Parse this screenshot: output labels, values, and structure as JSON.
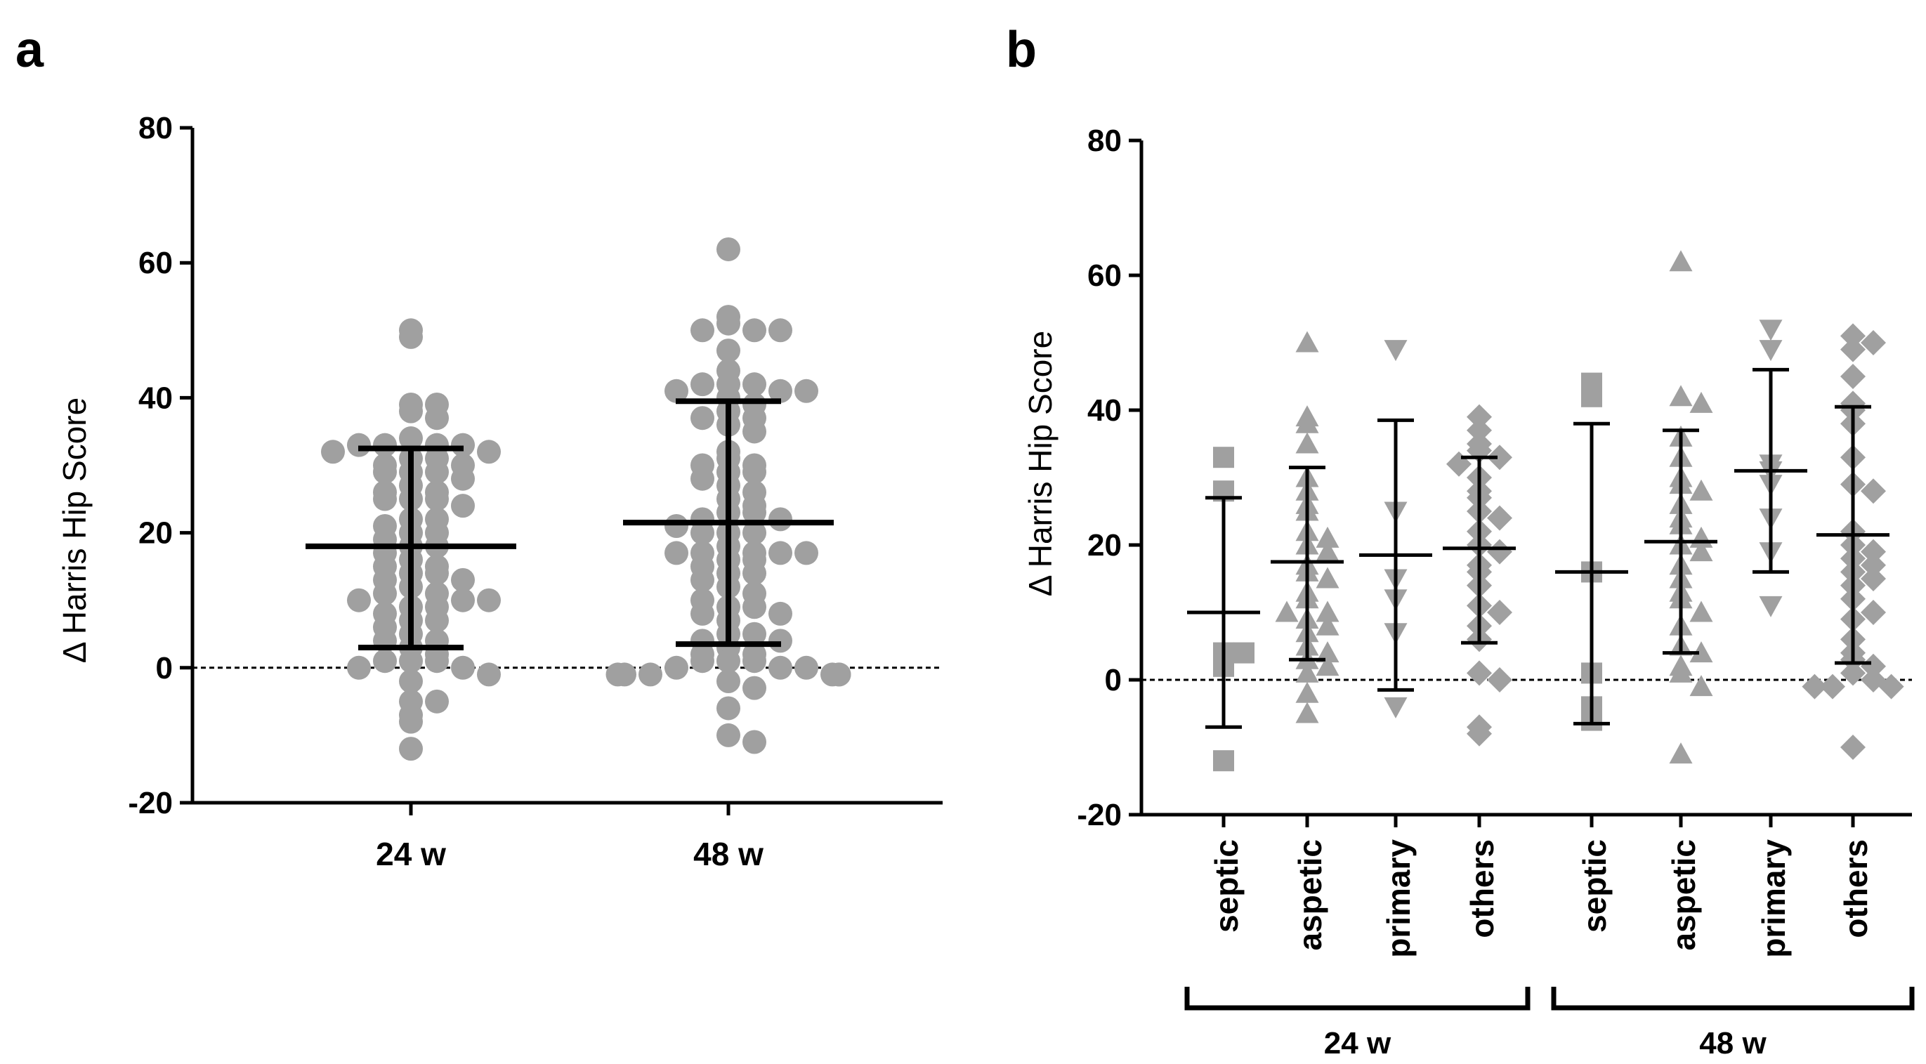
{
  "chart_data": [
    {
      "panel": "a",
      "type": "scatter",
      "ylabel": "Δ Harris Hip Score",
      "xlabel": "",
      "ylim": [
        -20,
        80
      ],
      "yticks": [
        "-20",
        "0",
        "20",
        "40",
        "60",
        "80"
      ],
      "reference_line": 0,
      "marker_color": "#a0a0a0",
      "categories": [
        "24 w",
        "48 w"
      ],
      "series": [
        {
          "name": "24 w",
          "marker": "circle",
          "mean": 18,
          "sd_low": 3,
          "sd_high": 32.5,
          "values": [
            50,
            49,
            39,
            39,
            38,
            37,
            34,
            33,
            33,
            33,
            33,
            32,
            32,
            31,
            31,
            30,
            30,
            29,
            29,
            29,
            28,
            27,
            26,
            26,
            25,
            25,
            25,
            24,
            22,
            22,
            21,
            20,
            20,
            19,
            18,
            18,
            17,
            16,
            15,
            15,
            14,
            14,
            13,
            13,
            12,
            11,
            11,
            10,
            10,
            10,
            9,
            9,
            8,
            7,
            7,
            6,
            5,
            4,
            4,
            3,
            2,
            1,
            1,
            1,
            0,
            0,
            -1,
            -2,
            -5,
            -5,
            -7,
            -8,
            -12
          ]
        },
        {
          "name": "48 w",
          "marker": "circle",
          "mean": 21.5,
          "sd_low": 3.5,
          "sd_high": 39.5,
          "values": [
            62,
            52,
            51,
            50,
            50,
            50,
            47,
            44,
            42,
            42,
            42,
            41,
            41,
            41,
            40,
            39,
            38,
            37,
            37,
            36,
            35,
            32,
            31,
            30,
            30,
            29,
            29,
            28,
            27,
            26,
            25,
            24,
            23,
            23,
            22,
            22,
            21,
            20,
            20,
            20,
            18,
            17,
            17,
            17,
            17,
            17,
            16,
            16,
            15,
            14,
            14,
            13,
            12,
            11,
            10,
            9,
            9,
            8,
            8,
            7,
            5,
            5,
            4,
            4,
            3,
            2,
            2,
            1,
            1,
            1,
            0,
            0,
            0,
            -1,
            -1,
            -1,
            -1,
            -1,
            -1,
            -2,
            -3,
            -6,
            -10,
            -11
          ]
        }
      ]
    },
    {
      "panel": "b",
      "type": "scatter",
      "ylabel": "Δ Harris Hip Score",
      "xlabel": "",
      "ylim": [
        -20,
        80
      ],
      "yticks": [
        "-20",
        "0",
        "20",
        "40",
        "60",
        "80"
      ],
      "reference_line": 0,
      "marker_color": "#a0a0a0",
      "categories": [
        "septic",
        "aspetic",
        "primary",
        "others",
        "septic",
        "aspetic",
        "primary",
        "others"
      ],
      "groups": [
        {
          "label": "24 w",
          "categories": [
            0,
            3
          ]
        },
        {
          "label": "48 w",
          "categories": [
            4,
            7
          ]
        }
      ],
      "series": [
        {
          "name": "septic (24 w)",
          "marker": "square",
          "mean": 10,
          "sd_low": -7,
          "sd_high": 27,
          "values": [
            33,
            28,
            4,
            4,
            2,
            -12
          ]
        },
        {
          "name": "aspetic (24 w)",
          "marker": "triangle-up",
          "mean": 17.5,
          "sd_low": 3,
          "sd_high": 31.5,
          "values": [
            50,
            39,
            38,
            35,
            30,
            28,
            26,
            25,
            22,
            21,
            20,
            19,
            17,
            16,
            15,
            13,
            12,
            10,
            10,
            9,
            8,
            7,
            5,
            4,
            3,
            2,
            1,
            -2,
            -5
          ]
        },
        {
          "name": "primary (24 w)",
          "marker": "triangle-down",
          "mean": 18.5,
          "sd_low": -1.5,
          "sd_high": 38.5,
          "values": [
            49,
            25,
            15,
            12,
            7,
            -4
          ]
        },
        {
          "name": "others (24 w)",
          "marker": "diamond",
          "mean": 19.5,
          "sd_low": 5.5,
          "sd_high": 33,
          "values": [
            39,
            37,
            35,
            34,
            33,
            32,
            30,
            28,
            27,
            25,
            24,
            22,
            20,
            19,
            17,
            16,
            14,
            11,
            10,
            8,
            6,
            1,
            0,
            -7,
            -8
          ]
        },
        {
          "name": "septic (48 w)",
          "marker": "square",
          "mean": 16,
          "sd_low": -6.5,
          "sd_high": 38,
          "values": [
            44,
            42,
            16,
            1,
            -4,
            -6
          ]
        },
        {
          "name": "aspetic (48 w)",
          "marker": "triangle-up",
          "mean": 20.5,
          "sd_low": 4,
          "sd_high": 37,
          "values": [
            62,
            42,
            41,
            36,
            33,
            30,
            29,
            28,
            26,
            24,
            23,
            21,
            20,
            19,
            17,
            15,
            13,
            12,
            10,
            8,
            5,
            4,
            2,
            1,
            -1,
            -11
          ]
        },
        {
          "name": "primary (48 w)",
          "marker": "triangle-down",
          "mean": 31,
          "sd_low": 16,
          "sd_high": 46,
          "values": [
            52,
            49,
            32,
            31,
            29,
            24,
            19,
            11
          ]
        },
        {
          "name": "others (48 w)",
          "marker": "diamond",
          "mean": 21.5,
          "sd_low": 2.5,
          "sd_high": 40.5,
          "values": [
            51,
            50,
            49,
            45,
            41,
            40,
            38,
            33,
            29,
            28,
            22,
            20,
            19,
            18,
            17,
            16,
            15,
            14,
            12,
            10,
            9,
            6,
            4,
            3,
            2,
            1,
            0,
            -1,
            -1,
            -1,
            -10
          ]
        }
      ]
    }
  ]
}
